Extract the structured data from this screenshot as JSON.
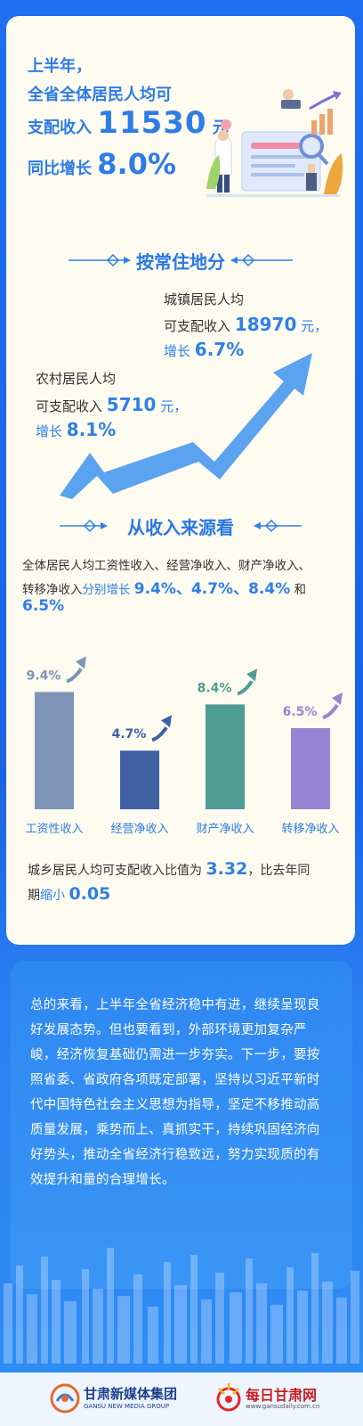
{
  "hero": {
    "line1": "上半年，",
    "line2": "全省全体居民人均可",
    "line3_prefix": "支配收入",
    "line3_value": "11530",
    "line3_unit": "元",
    "line4_prefix": "同比增长",
    "line4_value": "8.0%"
  },
  "section1": {
    "title": "按常住地分"
  },
  "urban": {
    "line1": "城镇居民人均",
    "line2_prefix": "可支配收入",
    "value": "18970",
    "unit": "元，",
    "growth_prefix": "增长",
    "growth": "6.7%"
  },
  "rural": {
    "line1": "农村居民人均",
    "line2_prefix": "可支配收入",
    "value": "5710",
    "unit": "元，",
    "growth_prefix": "增长",
    "growth": "8.1%"
  },
  "section2": {
    "title": "从收入来源看",
    "desc_line1": "全体居民人均工资性收入、经营净收入、财产净收入、",
    "desc_line2_prefix": "转移净收入",
    "desc_line2_mid": "分别增长",
    "desc_line2_values": "9.4%、4.7%、8.4%",
    "desc_line2_and": "和",
    "desc_line3": "6.5%"
  },
  "chart_data": {
    "type": "bar",
    "categories": [
      "工资性收入",
      "经营净收入",
      "财产净收入",
      "转移净收入"
    ],
    "values": [
      9.4,
      4.7,
      8.4,
      6.5
    ],
    "value_labels": [
      "9.4%",
      "4.7%",
      "8.4%",
      "6.5%"
    ],
    "colors": [
      "#7d94b6",
      "#3f61a4",
      "#4f9b96",
      "#9585d2"
    ],
    "label_colors": [
      "#7d94b6",
      "#3f61a4",
      "#4f9b96",
      "#9585d2"
    ],
    "ylim": [
      0,
      10
    ],
    "grid": false,
    "legend": "none"
  },
  "ratio": {
    "line1_prefix": "城乡居民人均可支配收入比值为",
    "line1_value": "3.32",
    "line1_suffix": "，比去年同",
    "line2_prefix": "期",
    "line2_mid": "缩小",
    "line2_value": "0.05"
  },
  "summary": {
    "text": "总的来看，上半年全省经济稳中有进，继续呈现良好发展态势。但也要看到，外部环境更加复杂严峻，经济恢复基础仍需进一步夯实。下一步，要按照省委、省政府各项既定部署，坚持以习近平新时代中国特色社会主义思想为指导，坚定不移推动高质量发展，乘势而上、真抓实干，持续巩固经济向好势头，推动全省经济行稳致远，努力实现质的有效提升和量的合理增长。"
  },
  "footer": {
    "logo1_cn": "甘肃新媒体集团",
    "logo1_en": "GANSU NEW MEDIA GROUP",
    "logo2_cn": "每日甘肃网",
    "logo2_en": "www.gansudaily.com.cn"
  },
  "colors": {
    "accent": "#2f7fe8",
    "arrow": "#5ba3ee",
    "card": "#fdfaf0",
    "background": "#1f6ff0"
  }
}
